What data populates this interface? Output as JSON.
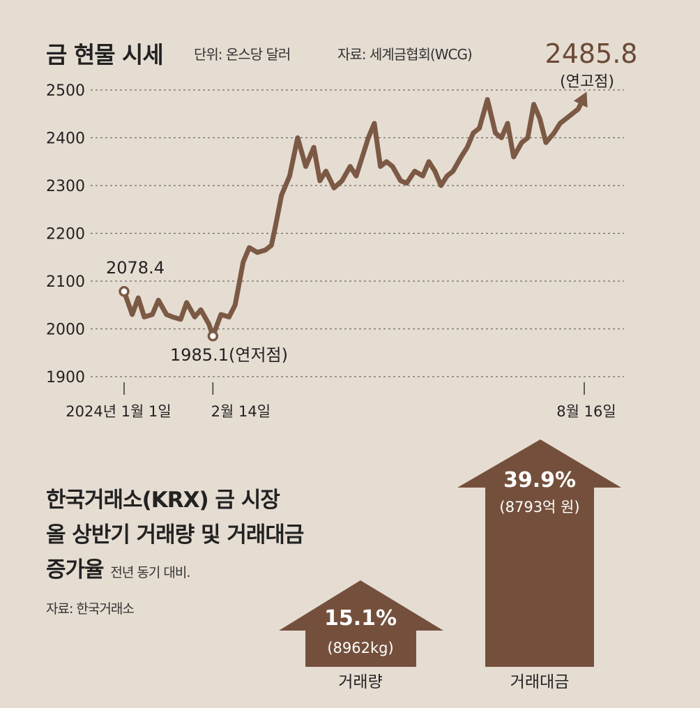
{
  "header": {
    "title": "금 현물 시세",
    "unit": "단위: 온스당 달러",
    "source": "자료: 세계금협회(WCG)"
  },
  "chart_data": {
    "type": "line",
    "title": "금 현물 시세",
    "ylabel": "온스당 달러",
    "ylim": [
      1900,
      2500
    ],
    "yticks": [
      "2500",
      "2400",
      "2300",
      "2200",
      "2100",
      "2000",
      "1900"
    ],
    "xticks": [
      "2024년 1월 1일",
      "2월 14일",
      "8월 16일"
    ],
    "grid": true,
    "series": [
      {
        "name": "금 현물 시세",
        "x": [
          0,
          4,
          7,
          10,
          14,
          17,
          21,
          24,
          28,
          31,
          35,
          38,
          42,
          44,
          48,
          52,
          55,
          59,
          62,
          66,
          70,
          73,
          75,
          78,
          82,
          86,
          90,
          94,
          97,
          100,
          104,
          108,
          112,
          115,
          118,
          121,
          124,
          127,
          130,
          133,
          137,
          140,
          144,
          148,
          151,
          154,
          157,
          160,
          163,
          167,
          170,
          173,
          176,
          180,
          184,
          187,
          190,
          193,
          197,
          200,
          203,
          206,
          209,
          213,
          216,
          219,
          222,
          225,
          228
        ],
        "values": [
          2078.4,
          2030,
          2065,
          2025,
          2030,
          2060,
          2030,
          2025,
          2020,
          2055,
          2025,
          2040,
          2010,
          1985.1,
          2030,
          2025,
          2050,
          2140,
          2170,
          2160,
          2165,
          2175,
          2215,
          2280,
          2320,
          2400,
          2340,
          2380,
          2310,
          2330,
          2295,
          2310,
          2340,
          2320,
          2360,
          2400,
          2430,
          2340,
          2350,
          2340,
          2310,
          2305,
          2330,
          2320,
          2350,
          2330,
          2300,
          2320,
          2330,
          2360,
          2380,
          2410,
          2420,
          2480,
          2410,
          2400,
          2430,
          2360,
          2390,
          2400,
          2470,
          2440,
          2390,
          2410,
          2430,
          2440,
          2450,
          2460,
          2485.8
        ]
      }
    ],
    "annotations": {
      "start_value": "2078.4",
      "low_value": "1985.1",
      "low_label": "(연저점)",
      "high_value": "2485.8",
      "high_label": "(연고점)"
    }
  },
  "lower": {
    "title_line1": "한국거래소(KRX) 금 시장",
    "title_line2": "올 상반기 거래량 및 거래대금",
    "title_line3": "증가율",
    "note": "전년 동기 대비.",
    "source": "자료: 한국거래소",
    "arrows": [
      {
        "name": "거래량",
        "pct": "15.1%",
        "pct_value": 15.1,
        "amount": "(8962kg)"
      },
      {
        "name": "거래대금",
        "pct": "39.9%",
        "pct_value": 39.9,
        "amount": "(8793억 원)"
      }
    ]
  },
  "colors": {
    "background": "#e6ddd2",
    "line": "#7b5945",
    "arrow": "#74503c",
    "accent_text": "#6b4a37"
  }
}
